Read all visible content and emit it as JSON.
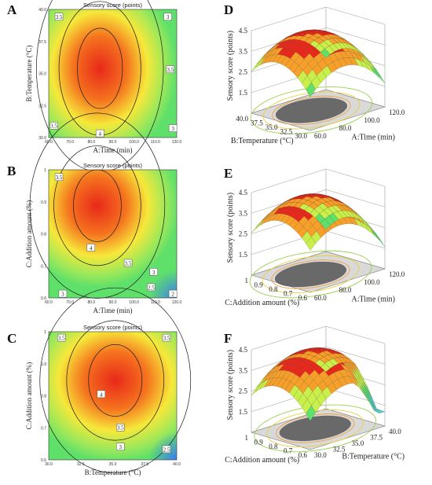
{
  "figure": {
    "panel_letters": [
      "A",
      "B",
      "C",
      "D",
      "E",
      "F"
    ]
  },
  "colors": {
    "peak": "#e8281a",
    "mid": "#f6e83a",
    "low_green": "#5fe06a",
    "low_blue": "#3a7bf2",
    "contour_line": "#1a1a1a"
  },
  "chart_data": [
    {
      "panel": "A",
      "type": "contour",
      "title": "Sensory score (points)",
      "xlabel": "A:Time (min)",
      "ylabel": "B:Temperature (°C)",
      "xlim": [
        60,
        120
      ],
      "ylim": [
        30,
        40
      ],
      "x_ticks": [
        "60.0",
        "70.0",
        "80.0",
        "90.0",
        "100.0",
        "110.0",
        "120.0"
      ],
      "y_ticks": [
        "30.0",
        "32.5",
        "35.0",
        "37.5",
        "40.0"
      ],
      "contour_labels": [
        "3.5",
        "3",
        "3.5",
        "3.5",
        "4",
        "3"
      ]
    },
    {
      "panel": "B",
      "type": "contour",
      "title": "Sensory score (points)",
      "xlabel": "A:Time (min)",
      "ylabel": "C:Addition amount (%)",
      "xlim": [
        60,
        120
      ],
      "ylim": [
        0.6,
        1
      ],
      "x_ticks": [
        "60.0",
        "70.0",
        "80.0",
        "90.0",
        "100.0",
        "110.0",
        "120.0"
      ],
      "y_ticks": [
        "0.6",
        "0.7",
        "0.8",
        "0.9",
        "1"
      ],
      "contour_labels": [
        "3.5",
        "4",
        "3.5",
        "3",
        "2.5",
        "2",
        "3"
      ]
    },
    {
      "panel": "C",
      "type": "contour",
      "title": "Sensory score (points)",
      "xlabel": "B:Temperature (°C)",
      "ylabel": "C:Addition amount (%)",
      "xlim": [
        30,
        40
      ],
      "ylim": [
        0.6,
        1
      ],
      "x_ticks": [
        "30.0",
        "32.5",
        "35.0",
        "37.5",
        "40.0"
      ],
      "y_ticks": [
        "0.6",
        "0.7",
        "0.8",
        "0.9",
        "1"
      ],
      "contour_labels": [
        "3.5",
        "3.5",
        "4",
        "3.5",
        "3",
        "2.5"
      ]
    },
    {
      "panel": "D",
      "type": "surface3d",
      "zlabel": "Sensory score (points)",
      "xlabel": "A:Time (min)",
      "ylabel": "B:Temperature (°C)",
      "z_ticks": [
        "1.5",
        "2.5",
        "3.5",
        "4.5"
      ],
      "x_ticks": [
        "60.0",
        "80.0",
        "100.0",
        "120.0"
      ],
      "y_ticks": [
        "30.0",
        "32.5",
        "35.0",
        "37.5",
        "40.0"
      ]
    },
    {
      "panel": "E",
      "type": "surface3d",
      "zlabel": "Sensory score (points)",
      "xlabel": "A:Time (min)",
      "ylabel": "C:Addition amount (%)",
      "z_ticks": [
        "1.5",
        "2.5",
        "3.5",
        "4.5"
      ],
      "x_ticks": [
        "60.0",
        "80.0",
        "100.0",
        "120.0"
      ],
      "y_ticks": [
        "0.6",
        "0.7",
        "0.8",
        "0.9",
        "1"
      ]
    },
    {
      "panel": "F",
      "type": "surface3d",
      "zlabel": "Sensory score (points)",
      "xlabel": "B:Temperature (°C)",
      "ylabel": "C:Addition amount (%)",
      "z_ticks": [
        "1.5",
        "2.5",
        "3.5",
        "4.5"
      ],
      "x_ticks": [
        "30.0",
        "32.5",
        "35.0",
        "37.5",
        "40.0"
      ],
      "y_ticks": [
        "0.6",
        "0.7",
        "0.8",
        "0.9",
        "1"
      ]
    }
  ]
}
